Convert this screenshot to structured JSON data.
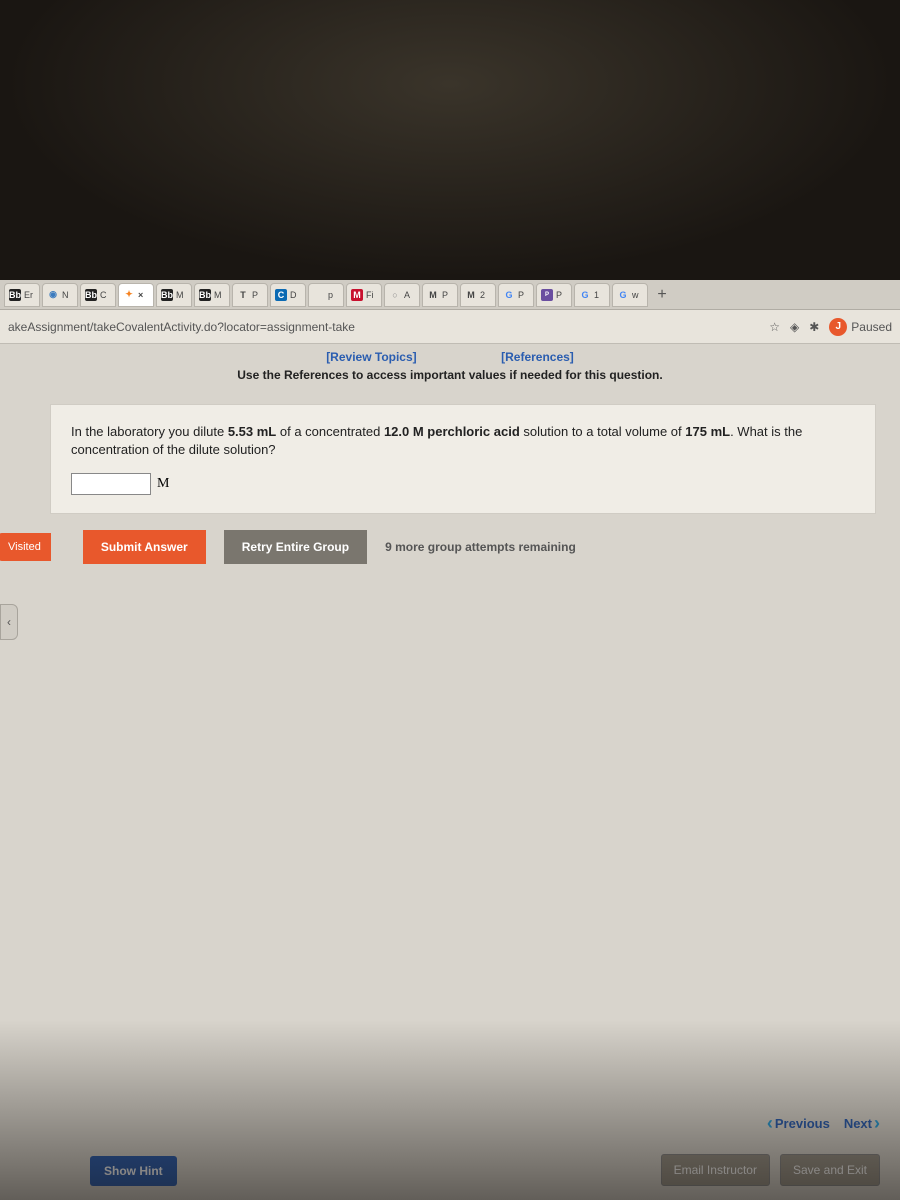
{
  "tabs": [
    {
      "icon": "Bb",
      "cls": "bb",
      "label": "Er"
    },
    {
      "icon": "◉",
      "cls": "globe",
      "label": "N"
    },
    {
      "icon": "Bb",
      "cls": "bb",
      "label": "C"
    },
    {
      "icon": "✦",
      "cls": "cengage",
      "label": "×",
      "active": true
    },
    {
      "icon": "Bb",
      "cls": "bb",
      "label": "M"
    },
    {
      "icon": "Bb",
      "cls": "bb",
      "label": "M"
    },
    {
      "icon": "T",
      "cls": "",
      "label": "P"
    },
    {
      "icon": "C",
      "cls": "c-blue",
      "label": "D"
    },
    {
      "icon": "",
      "cls": "",
      "label": "p"
    },
    {
      "icon": "M",
      "cls": "m-red",
      "label": "Fi"
    },
    {
      "icon": "○",
      "cls": "circle",
      "label": "A"
    },
    {
      "icon": "M",
      "cls": "",
      "label": "P"
    },
    {
      "icon": "M",
      "cls": "",
      "label": "2"
    },
    {
      "icon": "G",
      "cls": "g",
      "label": "P"
    },
    {
      "icon": "P",
      "cls": "phet",
      "label": "P"
    },
    {
      "icon": "G",
      "cls": "g",
      "label": "1"
    },
    {
      "icon": "G",
      "cls": "g",
      "label": "w"
    }
  ],
  "addr": {
    "url": "akeAssignment/takeCovalentActivity.do?locator=assignment-take",
    "star": "☆",
    "shield": "◈",
    "puzzle": "✱",
    "avatar": "J",
    "paused": "Paused"
  },
  "links": {
    "review": "[Review Topics]",
    "references": "[References]"
  },
  "instruct": "Use the References to access important values if needed for this question.",
  "question": {
    "pre": "In the laboratory you dilute ",
    "v1": "5.53 mL",
    "mid1": " of a concentrated ",
    "v2": "12.0 M perchloric acid",
    "mid2": " solution to a total volume of ",
    "v3": "175 mL",
    "post": ". What is the concentration of the dilute solution?"
  },
  "unit": "M",
  "visited": "Visited",
  "submit": "Submit Answer",
  "retry": "Retry Entire Group",
  "attempts": "9 more group attempts remaining",
  "hint": "Show Hint",
  "prev": "Previous",
  "next": "Next",
  "email": "Email Instructor",
  "save": "Save and Exit"
}
